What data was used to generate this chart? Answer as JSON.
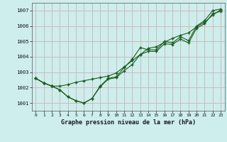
{
  "title": "Graphe pression niveau de la mer (hPa)",
  "bg_color": "#cdeeed",
  "grid_color": "#ccbbbb",
  "line_color": "#1a5c1a",
  "xlim": [
    -0.5,
    23.5
  ],
  "ylim": [
    1000.5,
    1007.5
  ],
  "yticks": [
    1001,
    1002,
    1003,
    1004,
    1005,
    1006,
    1007
  ],
  "xticks": [
    0,
    1,
    2,
    3,
    4,
    5,
    6,
    7,
    8,
    9,
    10,
    11,
    12,
    13,
    14,
    15,
    16,
    17,
    18,
    19,
    20,
    21,
    22,
    23
  ],
  "line1_x": [
    0,
    1,
    2,
    3,
    4,
    5,
    6,
    7,
    8,
    9,
    10,
    11,
    12,
    13,
    14,
    15,
    16,
    17,
    18,
    19,
    20,
    21,
    22,
    23
  ],
  "line1_y": [
    1002.6,
    1002.3,
    1002.1,
    1001.85,
    1001.4,
    1001.15,
    1001.0,
    1001.3,
    1002.1,
    1002.6,
    1002.7,
    1003.3,
    1003.85,
    1004.6,
    1004.45,
    1004.45,
    1005.0,
    1004.9,
    1005.3,
    1005.05,
    1006.0,
    1006.35,
    1007.0,
    1007.1
  ],
  "line2_x": [
    0,
    1,
    2,
    3,
    4,
    5,
    6,
    7,
    8,
    9,
    10,
    11,
    12,
    13,
    14,
    15,
    16,
    17,
    18,
    19,
    20,
    21,
    22,
    23
  ],
  "line2_y": [
    1002.6,
    1002.3,
    1002.1,
    1002.1,
    1002.2,
    1002.35,
    1002.45,
    1002.55,
    1002.65,
    1002.75,
    1002.95,
    1003.35,
    1003.75,
    1004.15,
    1004.55,
    1004.65,
    1004.95,
    1005.2,
    1005.4,
    1005.55,
    1005.95,
    1006.25,
    1006.7,
    1007.05
  ],
  "line3_x": [
    0,
    1,
    2,
    3,
    4,
    5,
    6,
    7,
    8,
    9,
    10,
    11,
    12,
    13,
    14,
    15,
    16,
    17,
    18,
    19,
    20,
    21,
    22,
    23
  ],
  "line3_y": [
    1002.6,
    1002.3,
    1002.1,
    1001.85,
    1001.4,
    1001.15,
    1001.0,
    1001.3,
    1002.05,
    1002.55,
    1002.65,
    1003.1,
    1003.5,
    1004.15,
    1004.35,
    1004.35,
    1004.85,
    1004.8,
    1005.15,
    1004.9,
    1005.85,
    1006.15,
    1006.8,
    1006.95
  ]
}
